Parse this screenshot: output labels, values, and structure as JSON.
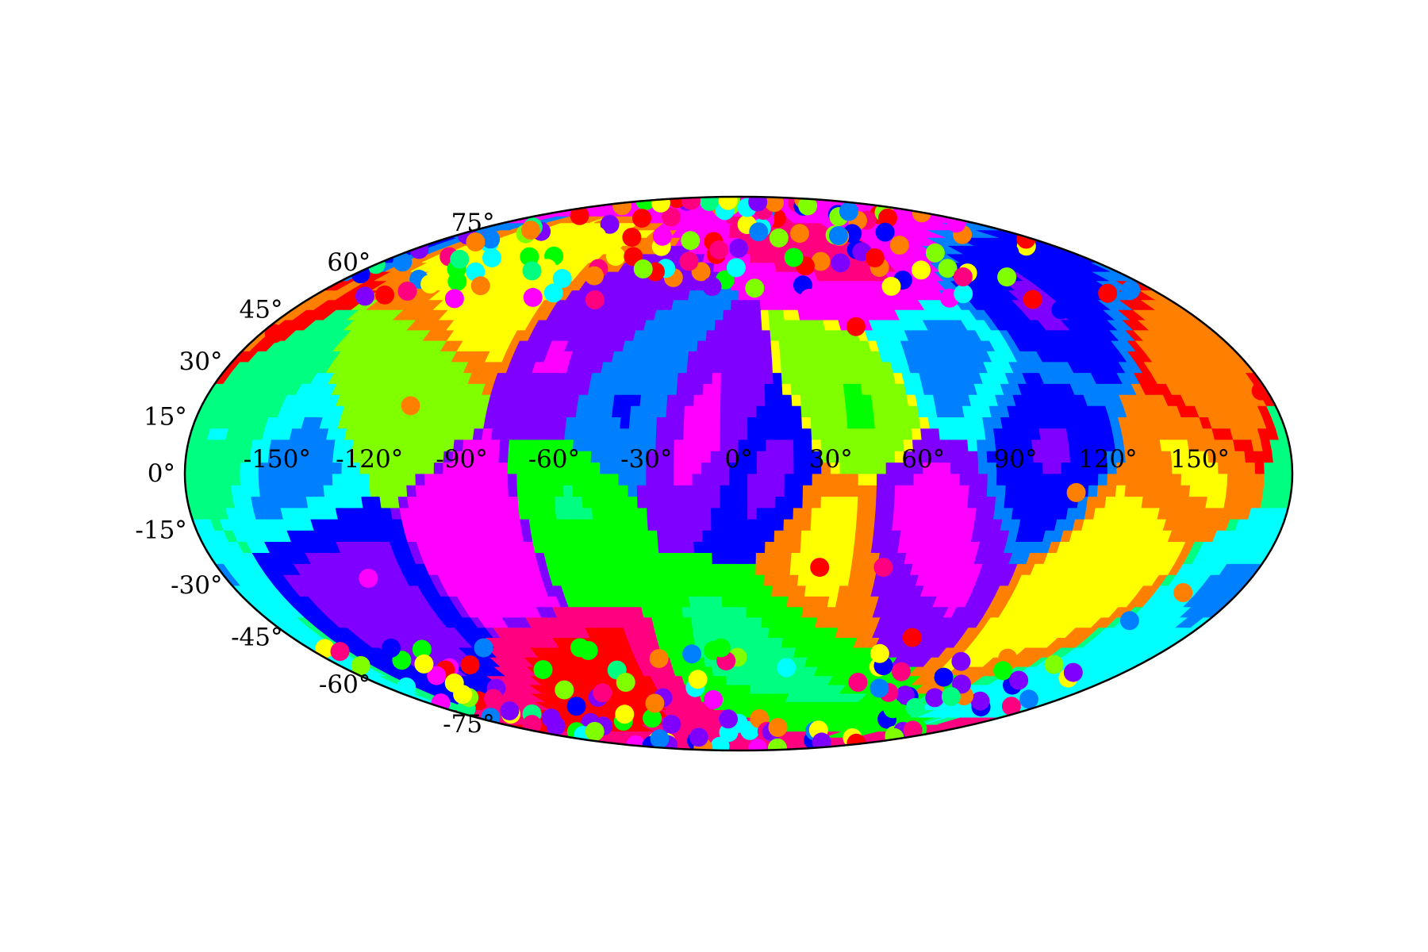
{
  "chart_data": {
    "type": "heatmap",
    "projection": "mollweide",
    "title": "",
    "xlabel": "",
    "ylabel": "",
    "xlim": [
      -180,
      180
    ],
    "ylim": [
      -90,
      90
    ],
    "grid": false,
    "colormap": "hsv",
    "colormap_colors": [
      "#ff0000",
      "#ff8000",
      "#ffff00",
      "#80ff00",
      "#00ff00",
      "#00ff80",
      "#00ffff",
      "#0080ff",
      "#0000ff",
      "#8000ff",
      "#ff00ff",
      "#ff0080"
    ],
    "x_ticks": [
      "-150°",
      "-120°",
      "-90°",
      "-60°",
      "-30°",
      "0°",
      "30°",
      "60°",
      "90°",
      "120°",
      "150°"
    ],
    "x_tick_values": [
      -150,
      -120,
      -90,
      -60,
      -30,
      0,
      30,
      60,
      90,
      120,
      150
    ],
    "y_ticks": [
      "75°",
      "60°",
      "45°",
      "30°",
      "15°",
      "0°",
      "-15°",
      "-30°",
      "-45°",
      "-60°",
      "-75°"
    ],
    "y_tick_values": [
      75,
      60,
      45,
      30,
      15,
      0,
      -15,
      -30,
      -45,
      -60,
      -75
    ],
    "value_range": [
      0,
      1
    ],
    "field_regions": [
      {
        "lon": 150,
        "lat": 0,
        "value": 0.07
      },
      {
        "lon": 135,
        "lat": -20,
        "value": 0.1
      },
      {
        "lon": 165,
        "lat": 20,
        "value": 0.02
      },
      {
        "lon": 100,
        "lat": 10,
        "value": 0.6
      },
      {
        "lon": 60,
        "lat": -10,
        "value": 0.74
      },
      {
        "lon": 75,
        "lat": 30,
        "value": 0.5
      },
      {
        "lon": 30,
        "lat": -15,
        "value": 0.08
      },
      {
        "lon": 40,
        "lat": 15,
        "value": 0.2
      },
      {
        "lon": 10,
        "lat": 0,
        "value": 0.66
      },
      {
        "lon": -10,
        "lat": 10,
        "value": 0.74
      },
      {
        "lon": -40,
        "lat": 20,
        "value": 0.55
      },
      {
        "lon": -60,
        "lat": 30,
        "value": 0.72
      },
      {
        "lon": -80,
        "lat": -15,
        "value": 0.78
      },
      {
        "lon": -60,
        "lat": -10,
        "value": 0.3
      },
      {
        "lon": -110,
        "lat": 25,
        "value": 0.22
      },
      {
        "lon": -100,
        "lat": 40,
        "value": 0.1
      },
      {
        "lon": -150,
        "lat": 0,
        "value": 0.5
      },
      {
        "lon": -170,
        "lat": 10,
        "value": 0.38
      },
      {
        "lon": -140,
        "lat": -30,
        "value": 0.66
      },
      {
        "lon": 170,
        "lat": -30,
        "value": 0.45
      },
      {
        "lon": 120,
        "lat": 45,
        "value": 0.6
      },
      {
        "lon": 0,
        "lat": -50,
        "value": 0.3
      },
      {
        "lon": 60,
        "lat": 60,
        "value": 0.8
      },
      {
        "lon": -60,
        "lat": -60,
        "value": 0.9
      }
    ],
    "points": [
      {
        "lon": 178,
        "lat": 22,
        "value": 0.0
      },
      {
        "lon": 45,
        "lat": 40,
        "value": 0.0
      },
      {
        "lon": 28,
        "lat": -25,
        "value": 0.0
      },
      {
        "lon": -110,
        "lat": 18,
        "value": 0.05
      },
      {
        "lon": -65,
        "lat": 22,
        "value": 0.78
      },
      {
        "lon": -85,
        "lat": -5,
        "value": 0.86
      },
      {
        "lon": 110,
        "lat": -5,
        "value": 0.08
      },
      {
        "lon": 160,
        "lat": -32,
        "value": 0.05
      },
      {
        "lon": 50,
        "lat": -25,
        "value": 0.9
      },
      {
        "lon": -130,
        "lat": -28,
        "value": 0.85
      },
      {
        "lon": -175,
        "lat": 38,
        "value": 0.0
      },
      {
        "lon": 150,
        "lat": -40,
        "value": 0.6
      },
      {
        "lon": 130,
        "lat": 45,
        "value": 0.7
      },
      {
        "lon": -30,
        "lat": 55,
        "value": 0.12
      },
      {
        "lon": 0,
        "lat": 65,
        "value": 0.75
      },
      {
        "lon": -60,
        "lat": 48,
        "value": 0.95
      },
      {
        "lon": 70,
        "lat": -45,
        "value": 0.0
      },
      {
        "lon": -20,
        "lat": -50,
        "value": 0.55
      },
      {
        "lon": -90,
        "lat": -55,
        "value": 0.3
      }
    ]
  }
}
